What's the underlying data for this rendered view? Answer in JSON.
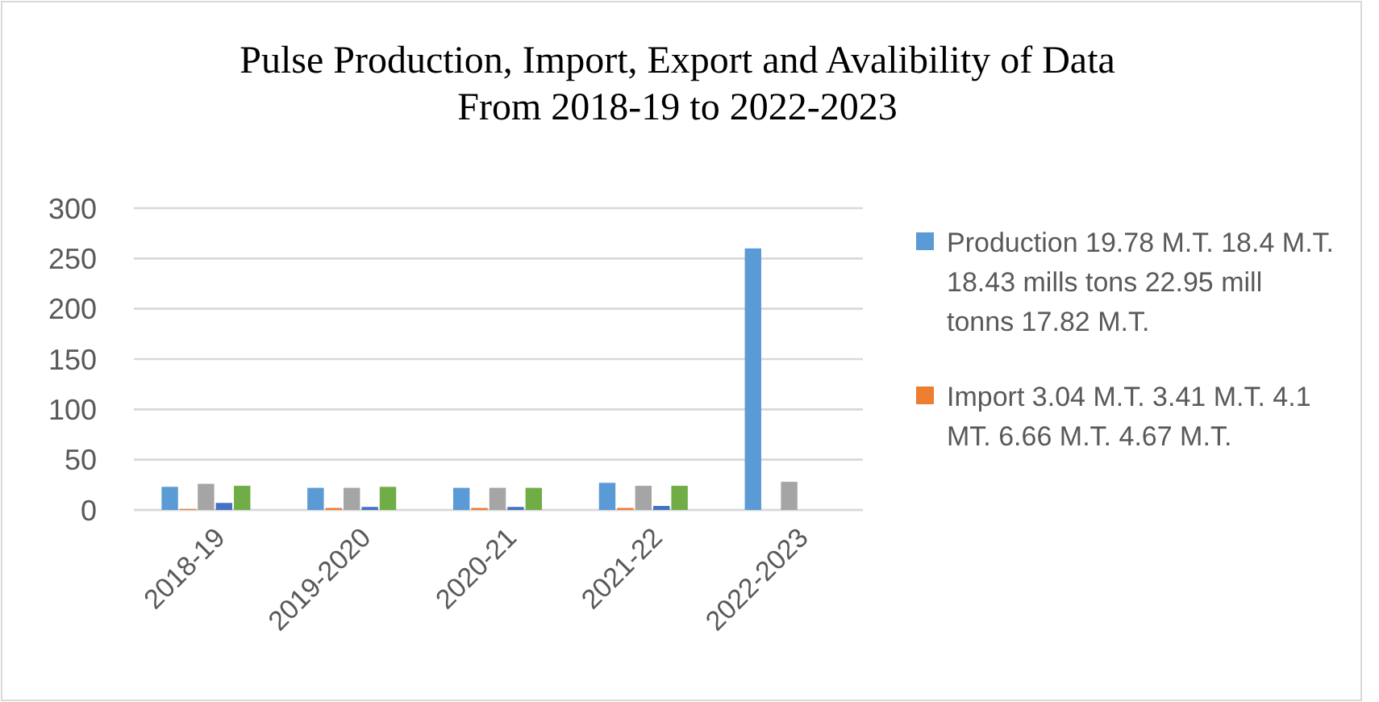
{
  "chart_data": {
    "type": "bar",
    "title": "Pulse Production, Import, Export and Avalibility of Data\nFrom 2018-19 to 2022-2023",
    "categories": [
      "2018-19",
      "2019-2020",
      "2020-21",
      "2021-22",
      "2022-2023"
    ],
    "series": [
      {
        "name": "Production 19.78 M.T. 18.4 M.T. 18.43 mills tons 22.95 mill tonns 17.82 M.T.",
        "color": "#5b9bd5",
        "values": [
          23,
          22,
          22,
          27,
          260
        ]
      },
      {
        "name": "Import 3.04 M.T. 3.41 M.T. 4.1 MT. 6.66 M.T. 4.67 M.T.",
        "color": "#ed7d31",
        "values": [
          1,
          2,
          2,
          2,
          null
        ]
      },
      {
        "color": "#a5a5a5",
        "values": [
          26,
          22,
          22,
          24,
          28
        ]
      },
      {
        "color": "#4472c4",
        "values": [
          7,
          3,
          3,
          4,
          null
        ]
      },
      {
        "color": "#70ad47",
        "values": [
          24,
          23,
          22,
          24,
          null
        ]
      }
    ],
    "ylim": [
      0,
      300
    ],
    "yticks": [
      0,
      50,
      100,
      150,
      200,
      250,
      300
    ],
    "grid": "y",
    "legend": "right"
  }
}
